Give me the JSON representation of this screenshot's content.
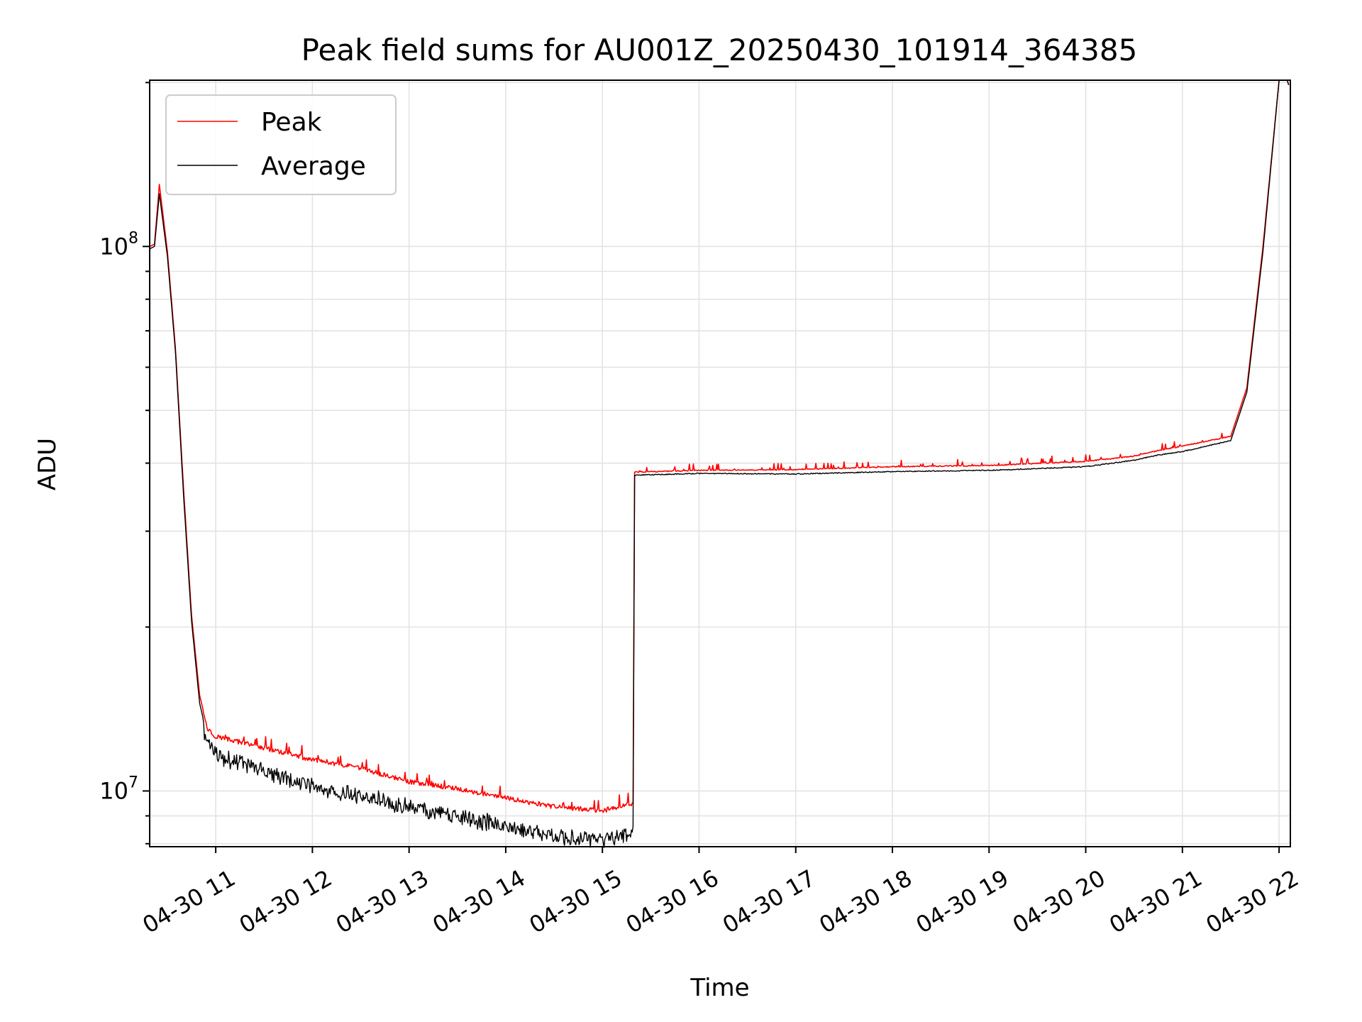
{
  "chart_data": {
    "type": "line",
    "title": "Peak field sums for AU001Z_20250430_101914_364385",
    "xlabel": "Time",
    "ylabel": "ADU",
    "x_ticks": [
      "04-30 11",
      "04-30 12",
      "04-30 13",
      "04-30 14",
      "04-30 15",
      "04-30 16",
      "04-30 17",
      "04-30 18",
      "04-30 19",
      "04-30 20",
      "04-30 21",
      "04-30 22"
    ],
    "y_ticks": [
      {
        "base": "10",
        "exp": "7",
        "value": 10000000
      },
      {
        "base": "10",
        "exp": "8",
        "value": 100000000
      }
    ],
    "y_scale": "log",
    "xlim": [
      "2025-04-30 10:19",
      "2025-04-30 22:07"
    ],
    "ylim": [
      7900000,
      202000000
    ],
    "grid": true,
    "legend_position": "top-left",
    "series": [
      {
        "name": "Peak",
        "color": "#ff0000",
        "points": [
          [
            "2025-04-30 10:19",
            100000000
          ],
          [
            "2025-04-30 10:22",
            101000000
          ],
          [
            "2025-04-30 10:25",
            130000000
          ],
          [
            "2025-04-30 10:30",
            98000000
          ],
          [
            "2025-04-30 10:35",
            65000000
          ],
          [
            "2025-04-30 10:40",
            36000000
          ],
          [
            "2025-04-30 10:45",
            21000000
          ],
          [
            "2025-04-30 10:50",
            15000000
          ],
          [
            "2025-04-30 10:55",
            13000000
          ],
          [
            "2025-04-30 11:00",
            12600000
          ],
          [
            "2025-04-30 11:30",
            12000000
          ],
          [
            "2025-04-30 12:00",
            11400000
          ],
          [
            "2025-04-30 12:30",
            11000000
          ],
          [
            "2025-04-30 13:00",
            10400000
          ],
          [
            "2025-04-30 13:30",
            10100000
          ],
          [
            "2025-04-30 14:00",
            9700000
          ],
          [
            "2025-04-30 14:30",
            9350000
          ],
          [
            "2025-04-30 15:00",
            9200000
          ],
          [
            "2025-04-30 15:19",
            9500000
          ],
          [
            "2025-04-30 15:20",
            38500000
          ],
          [
            "2025-04-30 16:00",
            38800000
          ],
          [
            "2025-04-30 17:00",
            38900000
          ],
          [
            "2025-04-30 18:00",
            39400000
          ],
          [
            "2025-04-30 19:00",
            39600000
          ],
          [
            "2025-04-30 20:00",
            40300000
          ],
          [
            "2025-04-30 20:30",
            41200000
          ],
          [
            "2025-04-30 20:45",
            42200000
          ],
          [
            "2025-04-30 21:00",
            43000000
          ],
          [
            "2025-04-30 21:30",
            44800000
          ],
          [
            "2025-04-30 21:40",
            55000000
          ],
          [
            "2025-04-30 21:50",
            100000000
          ],
          [
            "2025-04-30 22:00",
            202000000
          ],
          [
            "2025-04-30 22:05",
            202000000
          ],
          [
            "2025-04-30 22:06",
            198000000
          ]
        ]
      },
      {
        "name": "Average",
        "color": "#000000",
        "points": [
          [
            "2025-04-30 10:19",
            99000000
          ],
          [
            "2025-04-30 10:22",
            100000000
          ],
          [
            "2025-04-30 10:25",
            125000000
          ],
          [
            "2025-04-30 10:30",
            96000000
          ],
          [
            "2025-04-30 10:35",
            64000000
          ],
          [
            "2025-04-30 10:40",
            35000000
          ],
          [
            "2025-04-30 10:45",
            20500000
          ],
          [
            "2025-04-30 10:50",
            14500000
          ],
          [
            "2025-04-30 10:55",
            12500000
          ],
          [
            "2025-04-30 11:00",
            12000000
          ],
          [
            "2025-04-30 11:30",
            11200000
          ],
          [
            "2025-04-30 12:00",
            10500000
          ],
          [
            "2025-04-30 12:30",
            10100000
          ],
          [
            "2025-04-30 13:00",
            9600000
          ],
          [
            "2025-04-30 13:30",
            9250000
          ],
          [
            "2025-04-30 14:00",
            8900000
          ],
          [
            "2025-04-30 14:30",
            8500000
          ],
          [
            "2025-04-30 15:00",
            8400000
          ],
          [
            "2025-04-30 15:19",
            8600000
          ],
          [
            "2025-04-30 15:20",
            38000000
          ],
          [
            "2025-04-30 16:00",
            38300000
          ],
          [
            "2025-04-30 17:00",
            38200000
          ],
          [
            "2025-04-30 18:00",
            38600000
          ],
          [
            "2025-04-30 19:00",
            38800000
          ],
          [
            "2025-04-30 20:00",
            39400000
          ],
          [
            "2025-04-30 20:30",
            40500000
          ],
          [
            "2025-04-30 20:45",
            41400000
          ],
          [
            "2025-04-30 21:00",
            42000000
          ],
          [
            "2025-04-30 21:30",
            44000000
          ],
          [
            "2025-04-30 21:40",
            54000000
          ],
          [
            "2025-04-30 21:50",
            98000000
          ],
          [
            "2025-04-30 22:00",
            202000000
          ],
          [
            "2025-04-30 22:05",
            202000000
          ],
          [
            "2025-04-30 22:06",
            198000000
          ]
        ]
      }
    ]
  }
}
